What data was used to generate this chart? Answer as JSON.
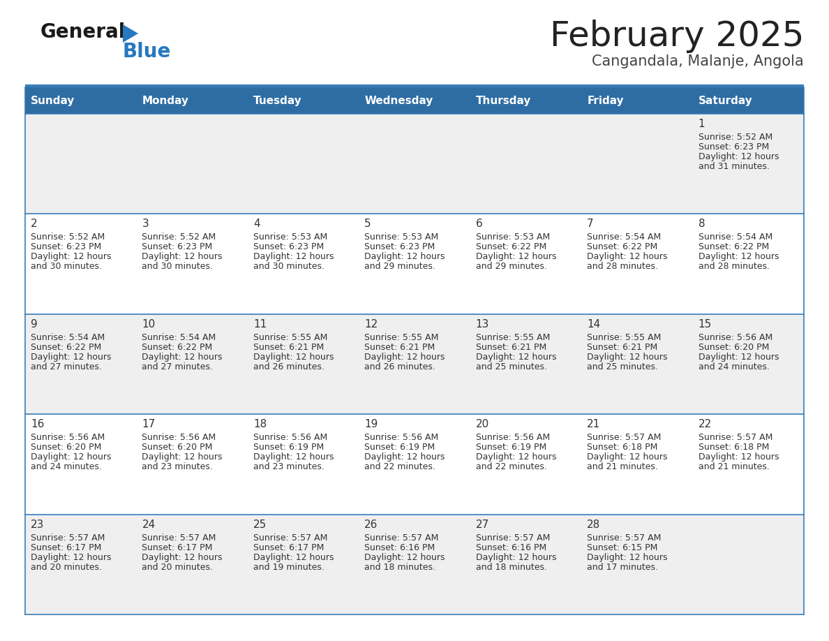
{
  "title": "February 2025",
  "subtitle": "Cangandala, Malanje, Angola",
  "header_color": "#2E6DA4",
  "header_text_color": "#FFFFFF",
  "background_color": "#FFFFFF",
  "cell_bg_even": "#EFEFEF",
  "cell_bg_odd": "#FFFFFF",
  "border_color": "#3A7CB8",
  "day_names": [
    "Sunday",
    "Monday",
    "Tuesday",
    "Wednesday",
    "Thursday",
    "Friday",
    "Saturday"
  ],
  "title_color": "#222222",
  "subtitle_color": "#444444",
  "day_num_color": "#333333",
  "text_color": "#333333",
  "weeks": [
    [
      {
        "day": null,
        "sunrise": null,
        "sunset": null,
        "daylight": null
      },
      {
        "day": null,
        "sunrise": null,
        "sunset": null,
        "daylight": null
      },
      {
        "day": null,
        "sunrise": null,
        "sunset": null,
        "daylight": null
      },
      {
        "day": null,
        "sunrise": null,
        "sunset": null,
        "daylight": null
      },
      {
        "day": null,
        "sunrise": null,
        "sunset": null,
        "daylight": null
      },
      {
        "day": null,
        "sunrise": null,
        "sunset": null,
        "daylight": null
      },
      {
        "day": 1,
        "sunrise": "5:52 AM",
        "sunset": "6:23 PM",
        "daylight": "12 hours and 31 minutes."
      }
    ],
    [
      {
        "day": 2,
        "sunrise": "5:52 AM",
        "sunset": "6:23 PM",
        "daylight": "12 hours and 30 minutes."
      },
      {
        "day": 3,
        "sunrise": "5:52 AM",
        "sunset": "6:23 PM",
        "daylight": "12 hours and 30 minutes."
      },
      {
        "day": 4,
        "sunrise": "5:53 AM",
        "sunset": "6:23 PM",
        "daylight": "12 hours and 30 minutes."
      },
      {
        "day": 5,
        "sunrise": "5:53 AM",
        "sunset": "6:23 PM",
        "daylight": "12 hours and 29 minutes."
      },
      {
        "day": 6,
        "sunrise": "5:53 AM",
        "sunset": "6:22 PM",
        "daylight": "12 hours and 29 minutes."
      },
      {
        "day": 7,
        "sunrise": "5:54 AM",
        "sunset": "6:22 PM",
        "daylight": "12 hours and 28 minutes."
      },
      {
        "day": 8,
        "sunrise": "5:54 AM",
        "sunset": "6:22 PM",
        "daylight": "12 hours and 28 minutes."
      }
    ],
    [
      {
        "day": 9,
        "sunrise": "5:54 AM",
        "sunset": "6:22 PM",
        "daylight": "12 hours and 27 minutes."
      },
      {
        "day": 10,
        "sunrise": "5:54 AM",
        "sunset": "6:22 PM",
        "daylight": "12 hours and 27 minutes."
      },
      {
        "day": 11,
        "sunrise": "5:55 AM",
        "sunset": "6:21 PM",
        "daylight": "12 hours and 26 minutes."
      },
      {
        "day": 12,
        "sunrise": "5:55 AM",
        "sunset": "6:21 PM",
        "daylight": "12 hours and 26 minutes."
      },
      {
        "day": 13,
        "sunrise": "5:55 AM",
        "sunset": "6:21 PM",
        "daylight": "12 hours and 25 minutes."
      },
      {
        "day": 14,
        "sunrise": "5:55 AM",
        "sunset": "6:21 PM",
        "daylight": "12 hours and 25 minutes."
      },
      {
        "day": 15,
        "sunrise": "5:56 AM",
        "sunset": "6:20 PM",
        "daylight": "12 hours and 24 minutes."
      }
    ],
    [
      {
        "day": 16,
        "sunrise": "5:56 AM",
        "sunset": "6:20 PM",
        "daylight": "12 hours and 24 minutes."
      },
      {
        "day": 17,
        "sunrise": "5:56 AM",
        "sunset": "6:20 PM",
        "daylight": "12 hours and 23 minutes."
      },
      {
        "day": 18,
        "sunrise": "5:56 AM",
        "sunset": "6:19 PM",
        "daylight": "12 hours and 23 minutes."
      },
      {
        "day": 19,
        "sunrise": "5:56 AM",
        "sunset": "6:19 PM",
        "daylight": "12 hours and 22 minutes."
      },
      {
        "day": 20,
        "sunrise": "5:56 AM",
        "sunset": "6:19 PM",
        "daylight": "12 hours and 22 minutes."
      },
      {
        "day": 21,
        "sunrise": "5:57 AM",
        "sunset": "6:18 PM",
        "daylight": "12 hours and 21 minutes."
      },
      {
        "day": 22,
        "sunrise": "5:57 AM",
        "sunset": "6:18 PM",
        "daylight": "12 hours and 21 minutes."
      }
    ],
    [
      {
        "day": 23,
        "sunrise": "5:57 AM",
        "sunset": "6:17 PM",
        "daylight": "12 hours and 20 minutes."
      },
      {
        "day": 24,
        "sunrise": "5:57 AM",
        "sunset": "6:17 PM",
        "daylight": "12 hours and 20 minutes."
      },
      {
        "day": 25,
        "sunrise": "5:57 AM",
        "sunset": "6:17 PM",
        "daylight": "12 hours and 19 minutes."
      },
      {
        "day": 26,
        "sunrise": "5:57 AM",
        "sunset": "6:16 PM",
        "daylight": "12 hours and 18 minutes."
      },
      {
        "day": 27,
        "sunrise": "5:57 AM",
        "sunset": "6:16 PM",
        "daylight": "12 hours and 18 minutes."
      },
      {
        "day": 28,
        "sunrise": "5:57 AM",
        "sunset": "6:15 PM",
        "daylight": "12 hours and 17 minutes."
      },
      {
        "day": null,
        "sunrise": null,
        "sunset": null,
        "daylight": null
      }
    ]
  ],
  "logo_text1": "General",
  "logo_text2": "Blue",
  "logo_color1": "#1a1a1a",
  "logo_color2": "#2878C0",
  "logo_triangle_color": "#2878C0"
}
